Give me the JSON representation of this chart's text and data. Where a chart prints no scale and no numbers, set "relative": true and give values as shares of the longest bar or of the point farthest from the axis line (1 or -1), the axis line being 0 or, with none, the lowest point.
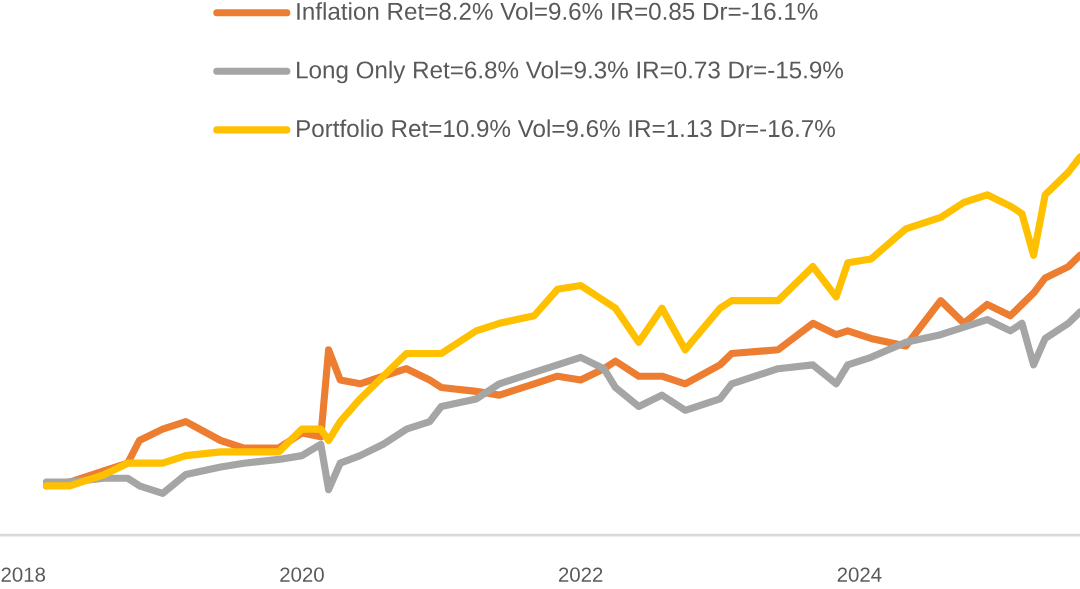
{
  "chart_data": {
    "type": "line",
    "relative": true,
    "x": [
      "2018-03",
      "2018-05",
      "2018-08",
      "2018-10",
      "2018-11",
      "2019-01",
      "2019-03",
      "2019-06",
      "2019-08",
      "2019-11",
      "2020-01",
      "2020-02-20",
      "2020-03-10",
      "2020-04-10",
      "2020-06",
      "2020-08",
      "2020-10",
      "2020-12",
      "2021-01",
      "2021-04",
      "2021-06",
      "2021-09",
      "2021-11",
      "2022-01",
      "2022-03",
      "2022-04",
      "2022-06",
      "2022-08",
      "2022-10",
      "2023-01",
      "2023-02",
      "2023-06",
      "2023-09",
      "2023-11",
      "2023-12",
      "2024-02",
      "2024-05",
      "2024-08",
      "2024-10",
      "2024-12",
      "2025-02",
      "2025-03",
      "2025-04",
      "2025-05",
      "2025-07",
      "2025-08"
    ],
    "xlim": [
      "2017-11",
      "2025-08"
    ],
    "xticks": [
      "2018",
      "2020",
      "2022",
      "2024"
    ],
    "legend": "top",
    "marker": "none",
    "line_style": "solid",
    "grid": false,
    "series": [
      {
        "name": "Inflation Ret=8.2% Vol=9.6% IR=0.85 Dr=-16.1%",
        "color": "#ed7d31",
        "values": [
          0.13,
          0.14,
          0.17,
          0.19,
          0.25,
          0.28,
          0.3,
          0.25,
          0.23,
          0.23,
          0.27,
          0.26,
          0.49,
          0.41,
          0.4,
          0.42,
          0.44,
          0.41,
          0.39,
          0.38,
          0.37,
          0.4,
          0.42,
          0.41,
          0.44,
          0.46,
          0.42,
          0.42,
          0.4,
          0.45,
          0.48,
          0.49,
          0.56,
          0.53,
          0.54,
          0.52,
          0.5,
          0.62,
          0.56,
          0.61,
          0.58,
          0.61,
          0.64,
          0.68,
          0.71,
          0.74
        ]
      },
      {
        "name": "Long Only Ret=6.8% Vol=9.3% IR=0.73 Dr=-15.9%",
        "color": "#a5a5a5",
        "values": [
          0.14,
          0.14,
          0.15,
          0.15,
          0.13,
          0.11,
          0.16,
          0.18,
          0.19,
          0.2,
          0.21,
          0.24,
          0.12,
          0.19,
          0.21,
          0.24,
          0.28,
          0.3,
          0.34,
          0.36,
          0.4,
          0.43,
          0.45,
          0.47,
          0.44,
          0.39,
          0.34,
          0.37,
          0.33,
          0.36,
          0.4,
          0.44,
          0.45,
          0.4,
          0.45,
          0.47,
          0.51,
          0.53,
          0.55,
          0.57,
          0.54,
          0.56,
          0.45,
          0.52,
          0.56,
          0.59
        ]
      },
      {
        "name": "Portfolio Ret=10.9% Vol=9.6% IR=1.13 Dr=-16.7%",
        "color": "#ffc000",
        "values": [
          0.13,
          0.13,
          0.16,
          0.19,
          0.19,
          0.19,
          0.21,
          0.22,
          0.22,
          0.22,
          0.28,
          0.28,
          0.25,
          0.3,
          0.36,
          0.42,
          0.48,
          0.48,
          0.48,
          0.54,
          0.56,
          0.58,
          0.65,
          0.66,
          0.62,
          0.6,
          0.51,
          0.6,
          0.49,
          0.6,
          0.62,
          0.62,
          0.71,
          0.63,
          0.72,
          0.73,
          0.81,
          0.84,
          0.88,
          0.9,
          0.87,
          0.85,
          0.74,
          0.9,
          0.96,
          1
        ]
      }
    ]
  }
}
